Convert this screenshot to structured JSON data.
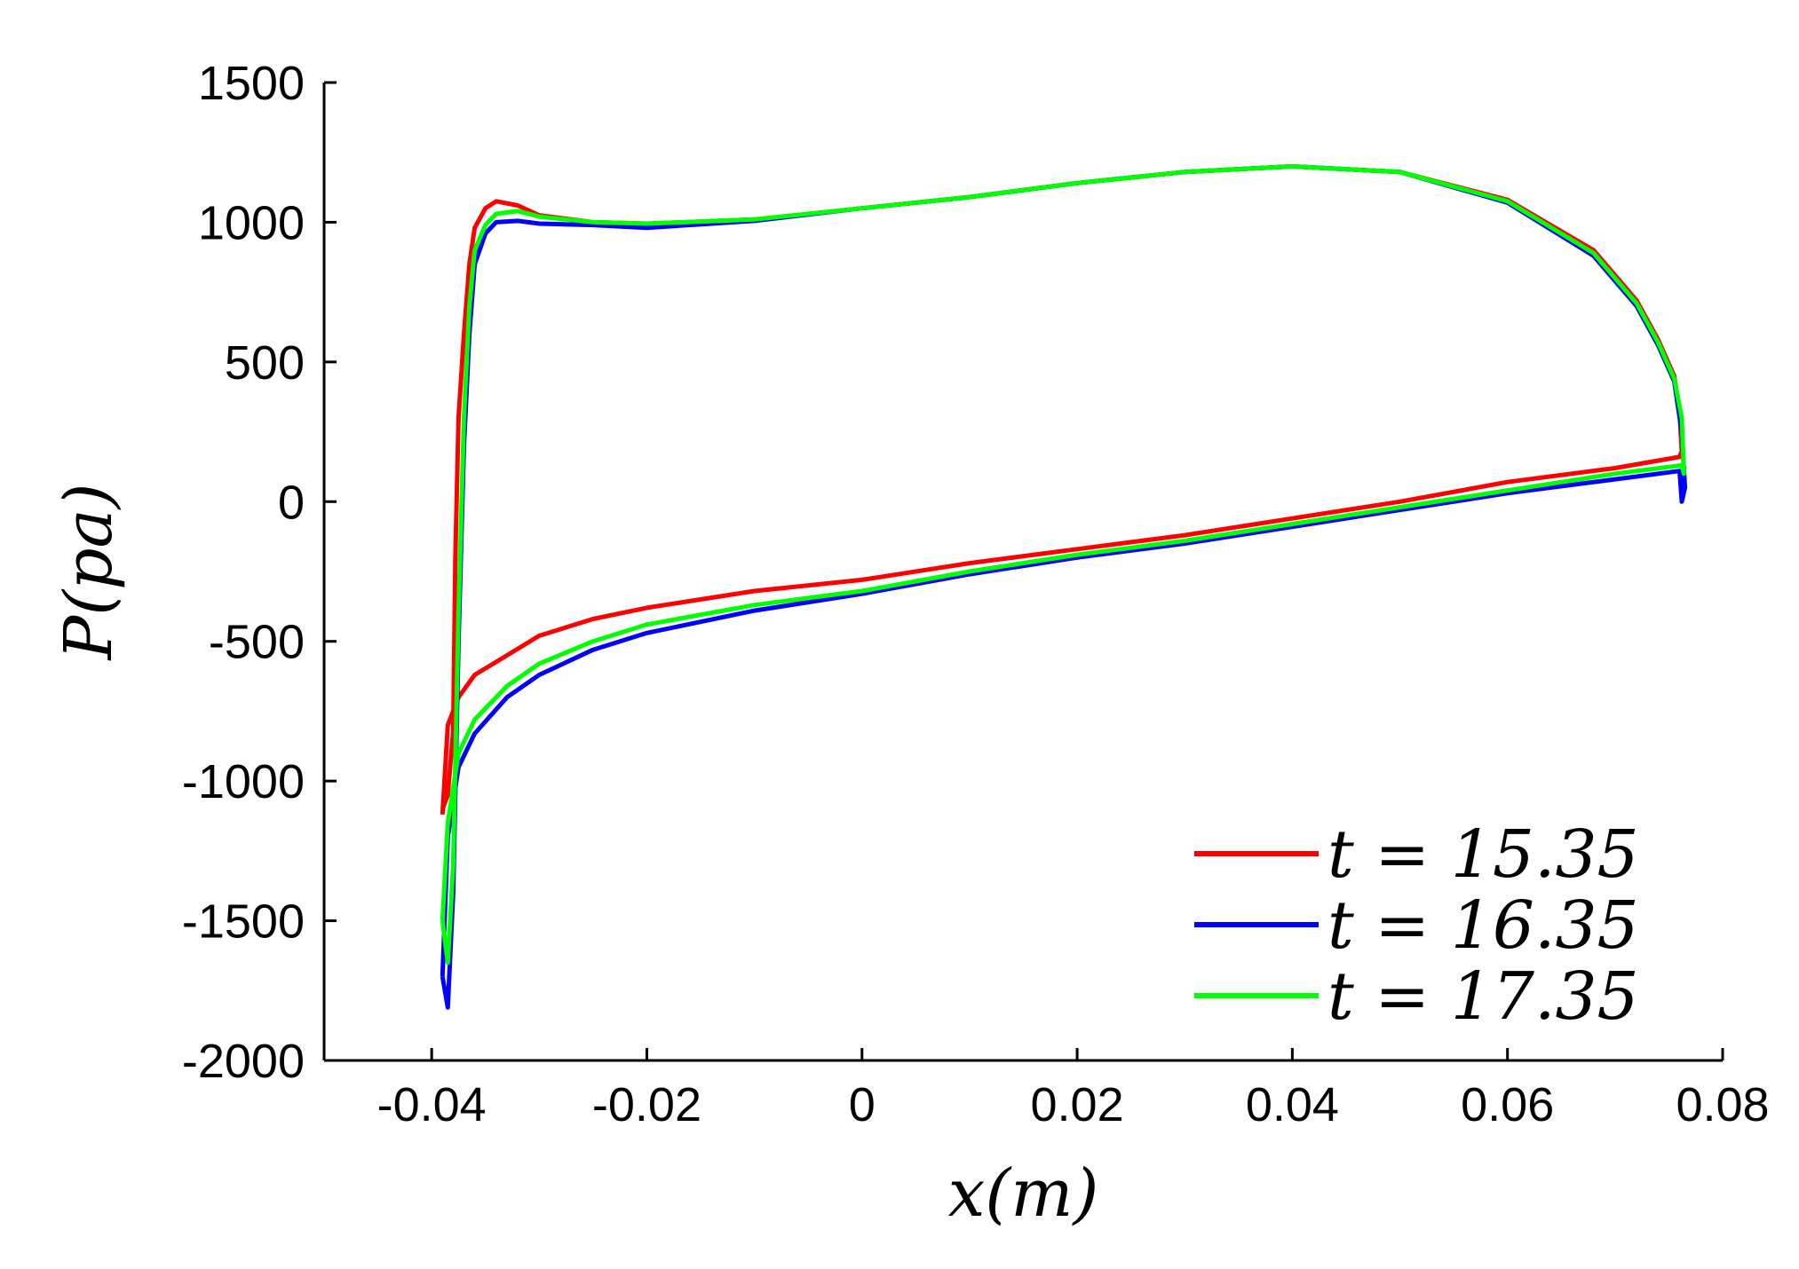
{
  "chart_data": {
    "type": "line",
    "title": "",
    "xlabel": "x(m)",
    "ylabel": "P(pa)",
    "xlim": [
      -0.05,
      0.08
    ],
    "ylim": [
      -2000,
      1500
    ],
    "xticks": [
      -0.04,
      -0.02,
      0,
      0.02,
      0.04,
      0.06,
      0.08
    ],
    "xtick_labels": [
      "-0.04",
      "-0.02",
      "0",
      "0.02",
      "0.04",
      "0.06",
      "0.08"
    ],
    "yticks": [
      1500,
      1000,
      500,
      0,
      -500,
      -1000,
      -1500,
      -2000
    ],
    "ytick_labels": [
      "1500",
      "1000",
      "500",
      "0",
      "-500",
      "-1000",
      "-1500",
      "-2000"
    ],
    "grid": false,
    "legend_position": "bottom-right",
    "series": [
      {
        "name": "t = 15.35",
        "color": "#ff0000",
        "points": [
          [
            -0.039,
            -1100
          ],
          [
            -0.0385,
            -1050
          ],
          [
            -0.038,
            -820
          ],
          [
            -0.0378,
            -200
          ],
          [
            -0.0375,
            300
          ],
          [
            -0.037,
            600
          ],
          [
            -0.0365,
            850
          ],
          [
            -0.036,
            980
          ],
          [
            -0.035,
            1050
          ],
          [
            -0.034,
            1075
          ],
          [
            -0.032,
            1060
          ],
          [
            -0.03,
            1025
          ],
          [
            -0.025,
            1000
          ],
          [
            -0.02,
            995
          ],
          [
            -0.01,
            1010
          ],
          [
            0.0,
            1050
          ],
          [
            0.01,
            1090
          ],
          [
            0.02,
            1140
          ],
          [
            0.03,
            1180
          ],
          [
            0.04,
            1200
          ],
          [
            0.05,
            1180
          ],
          [
            0.06,
            1080
          ],
          [
            0.068,
            900
          ],
          [
            0.072,
            720
          ],
          [
            0.074,
            580
          ],
          [
            0.0755,
            450
          ],
          [
            0.076,
            320
          ],
          [
            0.0762,
            180
          ],
          [
            0.076,
            160
          ],
          [
            0.07,
            120
          ],
          [
            0.06,
            70
          ],
          [
            0.05,
            0
          ],
          [
            0.04,
            -60
          ],
          [
            0.03,
            -120
          ],
          [
            0.02,
            -170
          ],
          [
            0.01,
            -220
          ],
          [
            0.0,
            -280
          ],
          [
            -0.01,
            -320
          ],
          [
            -0.02,
            -380
          ],
          [
            -0.025,
            -420
          ],
          [
            -0.03,
            -480
          ],
          [
            -0.033,
            -550
          ],
          [
            -0.036,
            -620
          ],
          [
            -0.0375,
            -700
          ],
          [
            -0.0385,
            -800
          ],
          [
            -0.039,
            -1120
          ]
        ]
      },
      {
        "name": "t = 16.35",
        "color": "#0000ff",
        "points": [
          [
            -0.039,
            -1700
          ],
          [
            -0.0385,
            -1810
          ],
          [
            -0.038,
            -1400
          ],
          [
            -0.0375,
            -500
          ],
          [
            -0.037,
            200
          ],
          [
            -0.0365,
            600
          ],
          [
            -0.036,
            850
          ],
          [
            -0.035,
            960
          ],
          [
            -0.034,
            1000
          ],
          [
            -0.032,
            1005
          ],
          [
            -0.03,
            995
          ],
          [
            -0.025,
            990
          ],
          [
            -0.02,
            980
          ],
          [
            -0.01,
            1005
          ],
          [
            0.0,
            1050
          ],
          [
            0.01,
            1090
          ],
          [
            0.02,
            1140
          ],
          [
            0.03,
            1180
          ],
          [
            0.04,
            1200
          ],
          [
            0.05,
            1180
          ],
          [
            0.06,
            1070
          ],
          [
            0.068,
            880
          ],
          [
            0.072,
            700
          ],
          [
            0.074,
            560
          ],
          [
            0.0755,
            430
          ],
          [
            0.0762,
            250
          ],
          [
            0.0765,
            50
          ],
          [
            0.0762,
            0
          ],
          [
            0.076,
            110
          ],
          [
            0.07,
            80
          ],
          [
            0.06,
            30
          ],
          [
            0.05,
            -30
          ],
          [
            0.04,
            -90
          ],
          [
            0.03,
            -150
          ],
          [
            0.02,
            -200
          ],
          [
            0.01,
            -260
          ],
          [
            0.0,
            -330
          ],
          [
            -0.01,
            -390
          ],
          [
            -0.02,
            -470
          ],
          [
            -0.025,
            -530
          ],
          [
            -0.03,
            -620
          ],
          [
            -0.033,
            -700
          ],
          [
            -0.036,
            -830
          ],
          [
            -0.0375,
            -950
          ],
          [
            -0.0385,
            -1200
          ],
          [
            -0.039,
            -1700
          ]
        ]
      },
      {
        "name": "t = 17.35",
        "color": "#00ff00",
        "points": [
          [
            -0.039,
            -1500
          ],
          [
            -0.0385,
            -1650
          ],
          [
            -0.038,
            -1300
          ],
          [
            -0.0375,
            -400
          ],
          [
            -0.037,
            300
          ],
          [
            -0.0365,
            700
          ],
          [
            -0.036,
            900
          ],
          [
            -0.035,
            990
          ],
          [
            -0.034,
            1030
          ],
          [
            -0.032,
            1040
          ],
          [
            -0.03,
            1020
          ],
          [
            -0.025,
            1000
          ],
          [
            -0.02,
            995
          ],
          [
            -0.01,
            1010
          ],
          [
            0.0,
            1050
          ],
          [
            0.01,
            1090
          ],
          [
            0.02,
            1140
          ],
          [
            0.03,
            1180
          ],
          [
            0.04,
            1200
          ],
          [
            0.05,
            1180
          ],
          [
            0.06,
            1075
          ],
          [
            0.068,
            890
          ],
          [
            0.072,
            710
          ],
          [
            0.074,
            570
          ],
          [
            0.0755,
            440
          ],
          [
            0.0762,
            300
          ],
          [
            0.0764,
            100
          ],
          [
            0.0762,
            130
          ],
          [
            0.07,
            100
          ],
          [
            0.06,
            40
          ],
          [
            0.05,
            -20
          ],
          [
            0.04,
            -80
          ],
          [
            0.03,
            -140
          ],
          [
            0.02,
            -190
          ],
          [
            0.01,
            -250
          ],
          [
            0.0,
            -320
          ],
          [
            -0.01,
            -370
          ],
          [
            -0.02,
            -440
          ],
          [
            -0.025,
            -500
          ],
          [
            -0.03,
            -580
          ],
          [
            -0.033,
            -660
          ],
          [
            -0.036,
            -780
          ],
          [
            -0.0375,
            -900
          ],
          [
            -0.0385,
            -1150
          ],
          [
            -0.039,
            -1500
          ]
        ]
      }
    ]
  }
}
